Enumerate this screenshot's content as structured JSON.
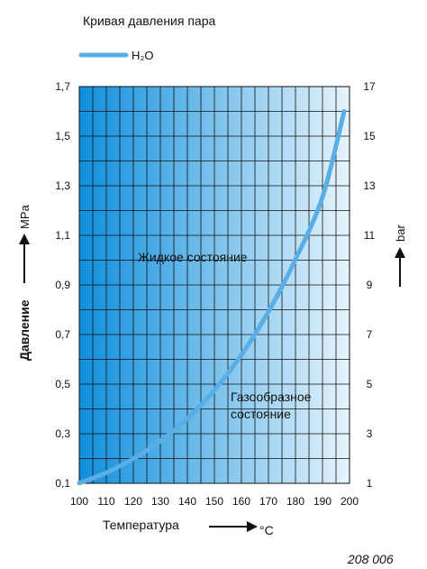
{
  "chart_data": {
    "type": "line",
    "title": "Кривая давления пара",
    "series": [
      {
        "name": "H₂O",
        "color": "#5aaee6",
        "x": [
          100,
          110,
          120,
          130,
          140,
          150,
          160,
          170,
          180,
          190,
          198
        ],
        "y": [
          0.101,
          0.143,
          0.199,
          0.27,
          0.361,
          0.476,
          0.618,
          0.792,
          1.003,
          1.255,
          1.6
        ]
      }
    ],
    "xlabel": "Температура",
    "xunit": "°C",
    "ylabel": "Давление",
    "yunit_left": "MPa",
    "yunit_right": "bar",
    "xlim": [
      100,
      200
    ],
    "ylim": [
      0.1,
      1.7
    ],
    "xticks": [
      "100",
      "110",
      "120",
      "130",
      "140",
      "150",
      "160",
      "170",
      "180",
      "190",
      "200"
    ],
    "yticks_left": [
      "0,1",
      "0,3",
      "0,5",
      "0,7",
      "0,9",
      "1,1",
      "1,3",
      "1,5",
      "1,7"
    ],
    "yticks_right": [
      "1",
      "3",
      "5",
      "7",
      "9",
      "11",
      "13",
      "15",
      "17"
    ],
    "annotations": {
      "liquid": "Жидкое состояние",
      "gas_line1": "Газообразное",
      "gas_line2": "состояние"
    },
    "grid": true,
    "plot_background": [
      "#0f8fdc",
      "#e6f4fc"
    ]
  },
  "figure_code": "208 006"
}
